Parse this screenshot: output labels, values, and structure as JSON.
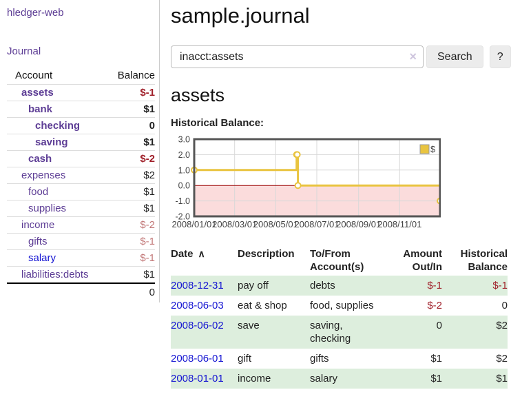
{
  "app": {
    "title": "hledger-web",
    "nav_journal": "Journal"
  },
  "sidebar_accounts": {
    "headers": {
      "account": "Account",
      "balance": "Balance"
    },
    "rows": [
      {
        "name": "assets",
        "indent": 1,
        "balance": "$-1",
        "bold": true,
        "blue": false
      },
      {
        "name": "bank",
        "indent": 2,
        "balance": "$1",
        "bold": true,
        "blue": false
      },
      {
        "name": "checking",
        "indent": 3,
        "balance": "0",
        "bold": true,
        "blue": false
      },
      {
        "name": "saving",
        "indent": 3,
        "balance": "$1",
        "bold": true,
        "blue": false
      },
      {
        "name": "cash",
        "indent": 2,
        "balance": "$-2",
        "bold": true,
        "blue": false
      },
      {
        "name": "expenses",
        "indent": 1,
        "balance": "$2",
        "bold": false,
        "blue": false
      },
      {
        "name": "food",
        "indent": 2,
        "balance": "$1",
        "bold": false,
        "blue": false
      },
      {
        "name": "supplies",
        "indent": 2,
        "balance": "$1",
        "bold": false,
        "blue": false
      },
      {
        "name": "income",
        "indent": 1,
        "balance": "$-2",
        "bold": false,
        "blue": false
      },
      {
        "name": "gifts",
        "indent": 2,
        "balance": "$-1",
        "bold": false,
        "blue": false
      },
      {
        "name": "salary",
        "indent": 2,
        "balance": "$-1",
        "bold": false,
        "blue": true
      },
      {
        "name": "liabilities:debts",
        "indent": 1,
        "balance": "$1",
        "bold": false,
        "blue": false
      }
    ],
    "total": "0"
  },
  "header": {
    "title": "sample.journal"
  },
  "search": {
    "value": "inacct:assets",
    "clear_icon": "×",
    "button": "Search",
    "help_button": "?"
  },
  "register": {
    "heading": "assets",
    "chart_title": "Historical Balance:"
  },
  "chart_data": {
    "type": "line",
    "title": "Historical Balance",
    "series": [
      {
        "name": "$",
        "step": true,
        "points": [
          [
            "2008-01-01",
            1
          ],
          [
            "2008-06-01",
            2
          ],
          [
            "2008-06-02",
            2
          ],
          [
            "2008-06-03",
            0
          ],
          [
            "2008-12-31",
            -1
          ]
        ]
      }
    ],
    "x_range": [
      "2008-01-01",
      "2008-12-31"
    ],
    "x_tick_labels": [
      "2008/01/01",
      "2008/03/01",
      "2008/05/01",
      "2008/07/01",
      "2008/09/01",
      "2008/11/01"
    ],
    "y_tick_labels": [
      "3.0",
      "2.0",
      "1.0",
      "0.0",
      "-1.0",
      "-2.0"
    ],
    "ylim": [
      -2,
      3
    ],
    "grid": true,
    "legend": {
      "label": "$",
      "position": "top-right"
    },
    "colors": {
      "line": "#e9c440",
      "marker_fill": "#ffffff",
      "negative_region": "#fbdcdc",
      "zero_line": "#990000",
      "grid": "#d8d8d8",
      "border": "#555555",
      "legend_swatch": "#e9c440"
    }
  },
  "transactions": {
    "headers": [
      "Date",
      "Description",
      "To/From Account(s)",
      "Amount Out/In",
      "Historical Balance"
    ],
    "sort_icon": "∧",
    "rows": [
      {
        "date": "2008-12-31",
        "description": "pay off",
        "accounts": "debts",
        "amount": "$-1",
        "balance": "$-1"
      },
      {
        "date": "2008-06-03",
        "description": "eat & shop",
        "accounts": "food, supplies",
        "amount": "$-2",
        "balance": "0"
      },
      {
        "date": "2008-06-02",
        "description": "save",
        "accounts": "saving, checking",
        "amount": "0",
        "balance": "$2"
      },
      {
        "date": "2008-06-01",
        "description": "gift",
        "accounts": "gifts",
        "amount": "$1",
        "balance": "$2"
      },
      {
        "date": "2008-01-01",
        "description": "income",
        "accounts": "salary",
        "amount": "$1",
        "balance": "$1"
      }
    ]
  }
}
